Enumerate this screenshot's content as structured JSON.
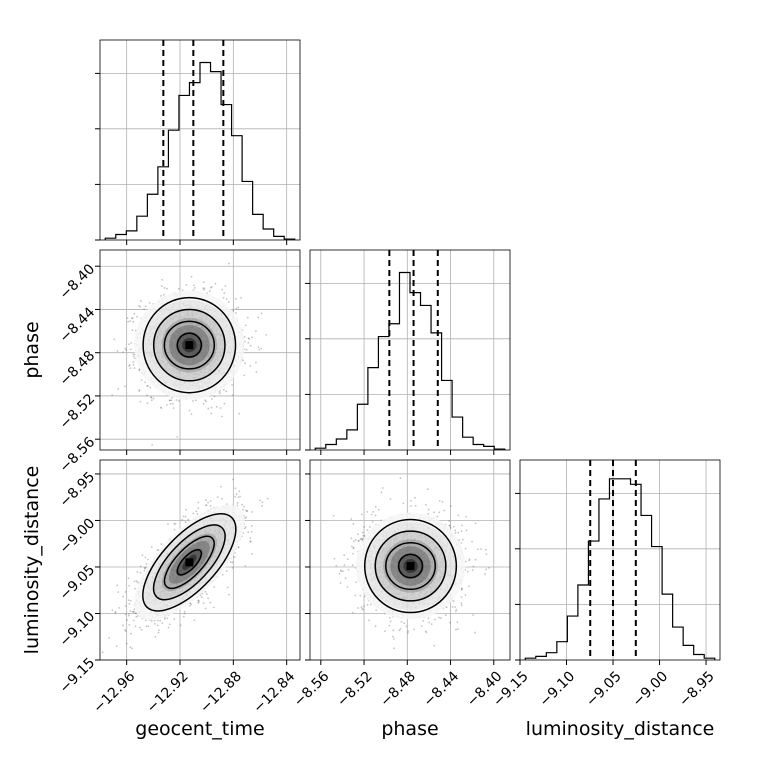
{
  "chart_data": {
    "type": "corner",
    "parameters": [
      {
        "name": "geocent_time",
        "label": "geocent_time",
        "range": [
          -12.98,
          -12.83
        ],
        "ticks": [
          -12.96,
          -12.92,
          -12.88,
          -12.84
        ],
        "tick_labels": [
          "−12.96",
          "−12.92",
          "−12.88",
          "−12.84"
        ],
        "quantiles": [
          -12.9325,
          -12.91,
          -12.8875
        ]
      },
      {
        "name": "phase",
        "label": "phase",
        "range": [
          -8.57,
          -8.385
        ],
        "ticks": [
          -8.56,
          -8.52,
          -8.48,
          -8.44,
          -8.4
        ],
        "tick_labels": [
          "−8.56",
          "−8.52",
          "−8.48",
          "−8.44",
          "−8.40"
        ],
        "quantiles": [
          -8.4966,
          -8.4742,
          -8.4518
        ]
      },
      {
        "name": "luminosity_distance",
        "label": "luminosity_distance",
        "range": [
          -9.15,
          -8.935
        ],
        "ticks": [
          -9.15,
          -9.1,
          -9.05,
          -9.0,
          -8.95
        ],
        "tick_labels": [
          "−9.15",
          "−9.10",
          "−9.05",
          "−9.00",
          "−8.95"
        ],
        "quantiles": [
          -9.0745,
          -9.05,
          -9.0255
        ]
      }
    ],
    "histograms": [
      {
        "param": "geocent_time",
        "counts": [
          0.01,
          0.03,
          0.05,
          0.13,
          0.25,
          0.4,
          0.6,
          0.79,
          0.86,
          0.97,
          0.92,
          0.74,
          0.57,
          0.32,
          0.14,
          0.06,
          0.02,
          0.005
        ]
      },
      {
        "param": "phase",
        "counts": [
          0.01,
          0.03,
          0.06,
          0.11,
          0.25,
          0.45,
          0.62,
          0.69,
          0.97,
          0.86,
          0.79,
          0.64,
          0.38,
          0.18,
          0.07,
          0.03,
          0.02,
          0.005
        ]
      },
      {
        "param": "luminosity_distance",
        "counts": [
          0.01,
          0.02,
          0.04,
          0.1,
          0.24,
          0.41,
          0.65,
          0.88,
          0.99,
          0.99,
          0.96,
          0.79,
          0.62,
          0.36,
          0.18,
          0.08,
          0.03,
          0.01
        ]
      }
    ],
    "correlations": [
      {
        "x": "geocent_time",
        "y": "phase",
        "rho": 0.0,
        "center": [
          -12.913,
          -8.473
        ],
        "sd": [
          0.018,
          0.022
        ]
      },
      {
        "x": "geocent_time",
        "y": "luminosity_distance",
        "rho": 0.7,
        "center": [
          -12.913,
          -9.045
        ],
        "sd": [
          0.018,
          0.027
        ]
      },
      {
        "x": "phase",
        "y": "luminosity_distance",
        "rho": 0.0,
        "center": [
          -8.477,
          -9.049
        ],
        "sd": [
          0.022,
          0.025
        ]
      }
    ],
    "contour_levels": [
      0.5,
      1.0,
      1.5,
      2.0
    ],
    "grid": true,
    "hist_ytick_fractions": [
      0.0,
      0.278,
      0.556,
      0.833
    ],
    "colors": {
      "line": "#000000",
      "scatter": "#555555",
      "grid": "#b0b0b0",
      "density": "#000000"
    }
  }
}
